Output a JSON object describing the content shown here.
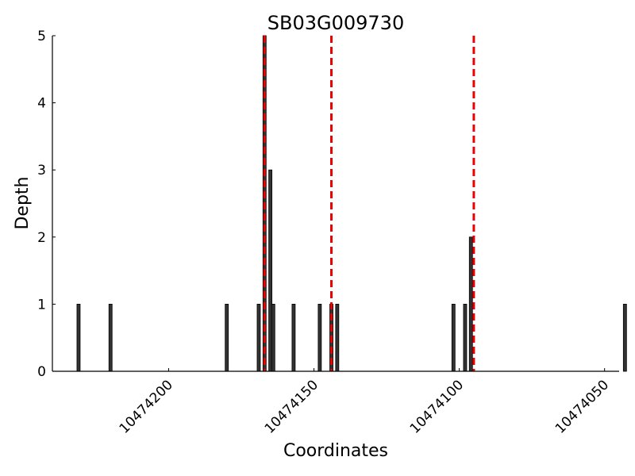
{
  "chart_data": {
    "type": "bar",
    "title": "SB03G009730",
    "xlabel": "Coordinates",
    "ylabel": "Depth",
    "xlim": [
      10474240,
      10474045
    ],
    "ylim": [
      0,
      5
    ],
    "x_inverted": true,
    "grid": false,
    "x_ticks": [
      10474200,
      10474150,
      10474100,
      10474050
    ],
    "x_tick_labels": [
      "10474200",
      "10474150",
      "10474100",
      "10474050"
    ],
    "y_ticks": [
      0,
      1,
      2,
      3,
      4,
      5
    ],
    "y_tick_labels": [
      "0",
      "1",
      "2",
      "3",
      "4",
      "5"
    ],
    "bar_color": "#333333",
    "marker_color": "#ee0000",
    "bars": [
      {
        "x": 10474231,
        "depth": 1
      },
      {
        "x": 10474220,
        "depth": 1
      },
      {
        "x": 10474180,
        "depth": 1
      },
      {
        "x": 10474169,
        "depth": 1
      },
      {
        "x": 10474167,
        "depth": 5
      },
      {
        "x": 10474165,
        "depth": 3
      },
      {
        "x": 10474164,
        "depth": 1
      },
      {
        "x": 10474157,
        "depth": 1
      },
      {
        "x": 10474148,
        "depth": 1
      },
      {
        "x": 10474144,
        "depth": 1
      },
      {
        "x": 10474142,
        "depth": 1
      },
      {
        "x": 10474102,
        "depth": 1
      },
      {
        "x": 10474098,
        "depth": 1
      },
      {
        "x": 10474096,
        "depth": 2
      },
      {
        "x": 10474043,
        "depth": 1
      }
    ],
    "vertical_markers": [
      10474167,
      10474144,
      10474095
    ]
  }
}
